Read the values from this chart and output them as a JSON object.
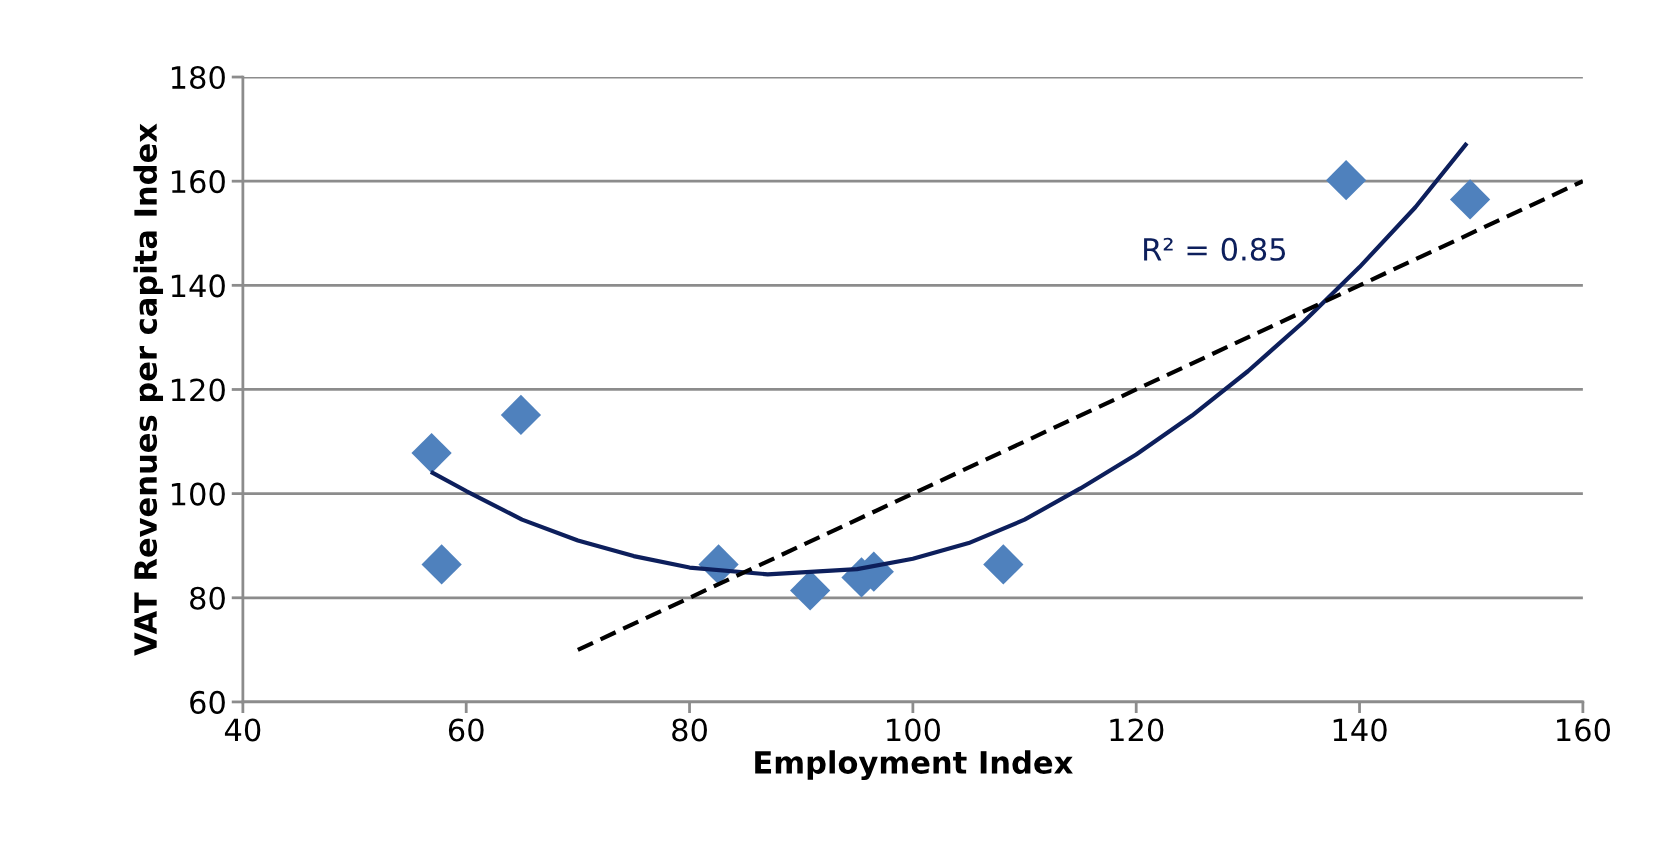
{
  "chart_data": {
    "type": "scatter",
    "xlabel": "Employment Index",
    "ylabel": "VAT Revenues per capita Index",
    "xlim": [
      40,
      160
    ],
    "xticks": [
      40,
      60,
      80,
      100,
      120,
      140,
      160
    ],
    "ylim": [
      60,
      180
    ],
    "yticks": [
      60,
      80,
      100,
      120,
      140,
      160,
      180
    ],
    "grid": "y",
    "series": [
      {
        "marker": "diamond",
        "color": "#4f81bd",
        "x": [
          56.9,
          57.8,
          64.9,
          82.6,
          90.8,
          95.4,
          96.5,
          108.1,
          138.8,
          149.9
        ],
        "values": [
          107.8,
          86.4,
          115.1,
          86.4,
          81.4,
          83.9,
          85,
          86.4,
          160.2,
          156.5
        ]
      },
      {
        "type": "line",
        "marker": "none",
        "line_style": "solid",
        "color": "#0d1f5c",
        "x": [
          57,
          60,
          65,
          70,
          75,
          80,
          87,
          95,
          100,
          105,
          110,
          115,
          120,
          125,
          130,
          135,
          140,
          145,
          149.5
        ],
        "values": [
          104,
          100.5,
          95,
          91,
          88,
          85.8,
          84.5,
          85.5,
          87.5,
          90.5,
          95,
          101,
          107.5,
          115,
          123.5,
          133,
          143.5,
          155,
          167
        ]
      },
      {
        "type": "line",
        "marker": "none",
        "line_style": "dashed",
        "color": "#000000",
        "x": [
          70,
          160
        ],
        "values": [
          70,
          160
        ]
      }
    ],
    "annotations": [
      "R² = 0.85"
    ]
  }
}
